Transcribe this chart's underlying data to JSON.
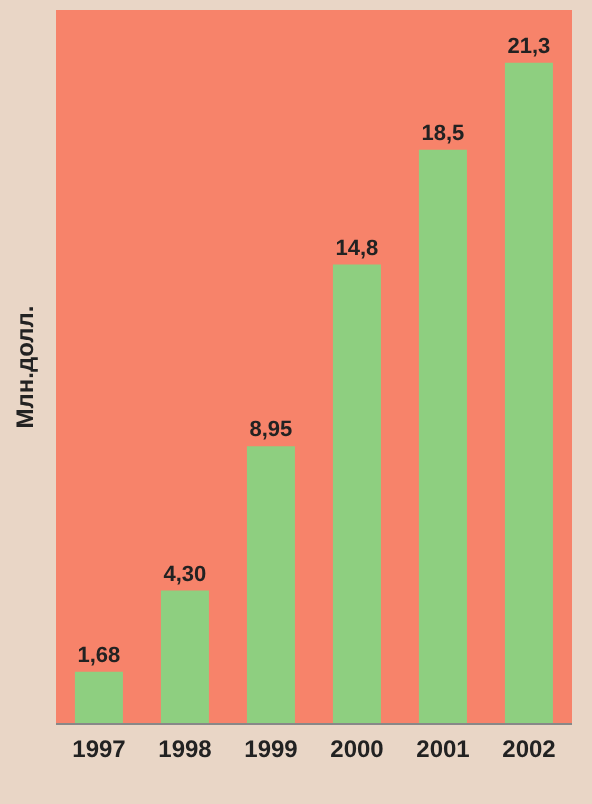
{
  "chart_data": {
    "type": "bar",
    "ylabel": "Млн.долл.",
    "categories": [
      "1997",
      "1998",
      "1999",
      "2000",
      "2001",
      "2002"
    ],
    "values": [
      1.68,
      4.3,
      8.95,
      14.8,
      18.5,
      21.3
    ],
    "value_labels": [
      "1,68",
      "4,30",
      "8,95",
      "14,8",
      "18,5",
      "21,3"
    ],
    "color": "#8ecf80",
    "ylim": [
      0,
      23
    ],
    "tick_labels": "x"
  }
}
